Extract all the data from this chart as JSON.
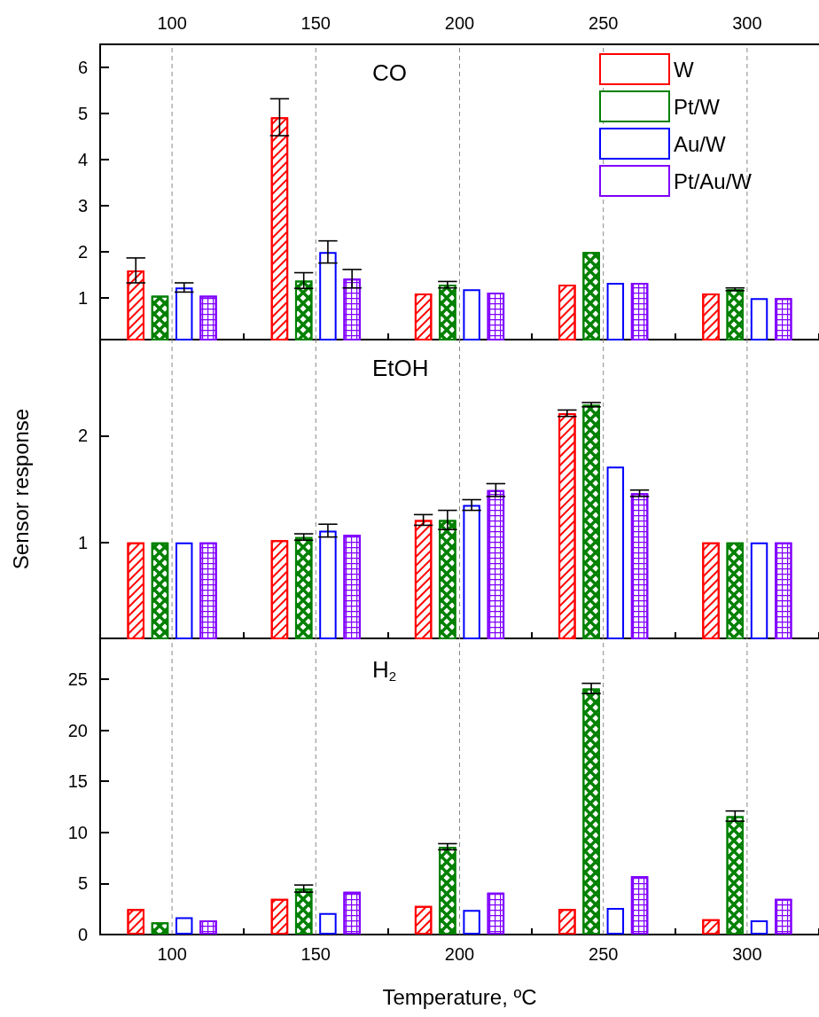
{
  "chart_data": [
    {
      "type": "bar",
      "title": "CO",
      "categories": [
        "100",
        "150",
        "200",
        "250",
        "300"
      ],
      "ylim": [
        0.1,
        6.5
      ],
      "yticks": [
        1,
        2,
        3,
        4,
        5,
        6
      ],
      "grid": "x",
      "legend": "top right",
      "series": [
        {
          "name": "W",
          "color": "#ff0000",
          "values": [
            1.6,
            4.92,
            1.1,
            1.29,
            1.1
          ],
          "errors": [
            0.27,
            0.4,
            null,
            null,
            null
          ]
        },
        {
          "name": "Pt/W",
          "color": "#008000",
          "values": [
            1.05,
            1.38,
            1.29,
            2.0,
            1.19
          ],
          "errors": [
            null,
            0.17,
            0.07,
            null,
            0.03
          ]
        },
        {
          "name": "Au/W",
          "color": "#0000ff",
          "values": [
            1.23,
            2.0,
            1.19,
            1.33,
            1.0
          ],
          "errors": [
            0.1,
            0.24,
            null,
            null,
            null
          ]
        },
        {
          "name": "Pt/Au/W",
          "color": "#8000ff",
          "values": [
            1.05,
            1.42,
            1.12,
            1.33,
            1.0
          ],
          "errors": [
            null,
            0.2,
            null,
            null,
            null
          ]
        }
      ]
    },
    {
      "type": "bar",
      "title": "EtOH",
      "ylabel": "Sensor response",
      "categories": [
        "100",
        "150",
        "200",
        "250",
        "300"
      ],
      "ylim": [
        0.1,
        2.9
      ],
      "yticks": [
        1,
        2
      ],
      "grid": "x",
      "tick_labels": "y",
      "series": [
        {
          "color": "#ff0000",
          "values": [
            1.0,
            1.02,
            1.21,
            2.21,
            1.0
          ],
          "errors": [
            null,
            null,
            0.05,
            0.03,
            null
          ]
        },
        {
          "color": "#008000",
          "values": [
            1.0,
            1.05,
            1.21,
            2.29,
            1.0
          ],
          "errors": [
            null,
            0.03,
            0.09,
            0.02,
            null
          ]
        },
        {
          "color": "#0000ff",
          "values": [
            1.0,
            1.11,
            1.35,
            1.71,
            1.0
          ],
          "errors": [
            null,
            0.06,
            0.05,
            null,
            null
          ]
        },
        {
          "color": "#8000ff",
          "values": [
            1.0,
            1.07,
            1.49,
            1.46,
            1.0
          ],
          "errors": [
            null,
            null,
            0.06,
            0.03,
            null
          ]
        }
      ]
    },
    {
      "type": "bar",
      "title": "H$_{2}$",
      "xlabel": "Temperature, ºC",
      "categories": [
        "100",
        "150",
        "200",
        "250",
        "300"
      ],
      "ylim": [
        0,
        29
      ],
      "yticks": [
        0,
        5,
        10,
        15,
        20,
        25
      ],
      "grid": "x",
      "series": [
        {
          "color": "#ff0000",
          "values": [
            2.5,
            3.5,
            2.8,
            2.5,
            1.5
          ]
        },
        {
          "color": "#008000",
          "values": [
            1.2,
            4.5,
            8.6,
            24.1,
            11.6
          ],
          "errors": [
            null,
            0.35,
            0.3,
            0.5,
            0.5
          ]
        },
        {
          "color": "#0000ff",
          "values": [
            1.7,
            2.1,
            2.4,
            2.6,
            1.4
          ]
        },
        {
          "color": "#8000ff",
          "values": [
            1.4,
            4.2,
            4.1,
            5.7,
            3.5
          ]
        }
      ]
    }
  ]
}
